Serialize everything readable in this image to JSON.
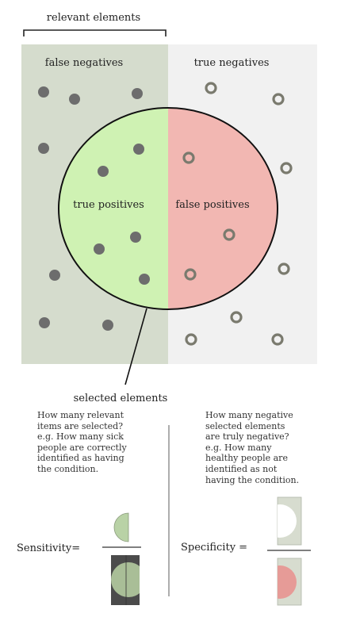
{
  "labels": {
    "relevant": "relevant elements",
    "false_negatives": "false negatives",
    "true_negatives": "true negatives",
    "true_positives": "true positives",
    "false_positives": "false positives",
    "selected": "selected elements"
  },
  "sensitivity": {
    "label": "Sensitivity=",
    "description": [
      "How many relevant",
      "items are selected?",
      "e.g. How many sick",
      "people are correctly",
      "identified as having",
      "the condition."
    ]
  },
  "specificity": {
    "label": "Specificity =",
    "description": [
      "How many negative",
      "selected elements",
      "are truly negative?",
      "e.g. How many",
      "healthy people are",
      "identified as not",
      "having the condition."
    ]
  },
  "colors": {
    "relevant_bg": "#d5dccd",
    "irrelevant_bg": "#f1f1f1",
    "true_positive_fill": "#cff2b3",
    "false_positive_fill": "#f2b7b2",
    "filled_dot": "#6d6d6d",
    "hollow_dot": "#7a7a6e",
    "circle_stroke": "#111111"
  }
}
